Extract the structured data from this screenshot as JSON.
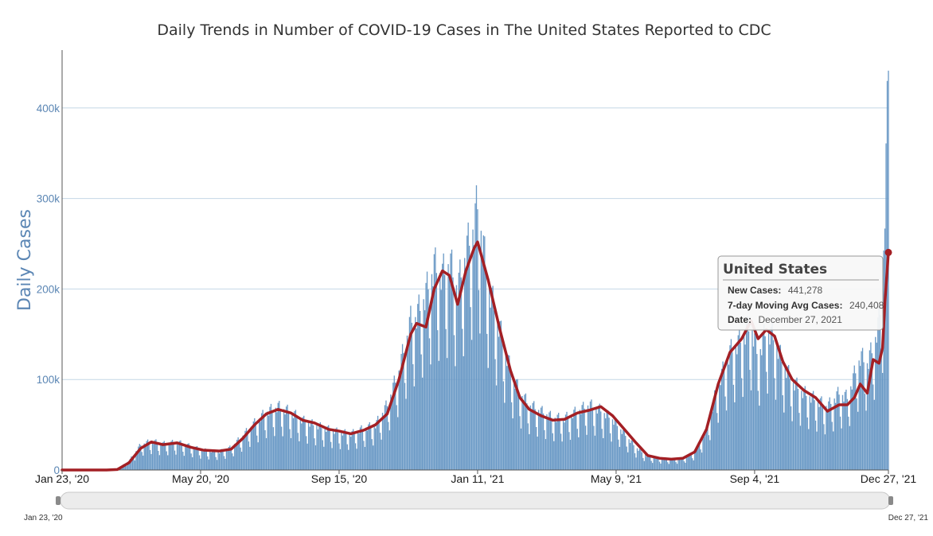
{
  "chart_data": {
    "type": "bar",
    "title": "Daily Trends in Number of COVID-19 Cases in The United States Reported to CDC",
    "ylabel": "Daily Cases",
    "xlabel": "",
    "ylim": [
      0,
      460000
    ],
    "x_range": [
      "2020-01-23",
      "2021-12-27"
    ],
    "y_ticks": [
      {
        "value": 0,
        "label": "0"
      },
      {
        "value": 100000,
        "label": "100k"
      },
      {
        "value": 200000,
        "label": "200k"
      },
      {
        "value": 300000,
        "label": "300k"
      },
      {
        "value": 400000,
        "label": "400k"
      }
    ],
    "x_ticks": [
      {
        "date": "2020-01-23",
        "label": "Jan 23, '20"
      },
      {
        "date": "2020-05-20",
        "label": "May 20, '20"
      },
      {
        "date": "2020-09-15",
        "label": "Sep 15, '20"
      },
      {
        "date": "2021-01-11",
        "label": "Jan 11, '21"
      },
      {
        "date": "2021-05-09",
        "label": "May 9, '21"
      },
      {
        "date": "2021-09-04",
        "label": "Sep 4, '21"
      },
      {
        "date": "2021-12-27",
        "label": "Dec 27, '21"
      }
    ],
    "navigator_labels": [
      "Jan 23, '20",
      "Dec 27, '21"
    ],
    "grid": true,
    "legend": "none",
    "colors": {
      "bars": "#6b9ac6",
      "moving_avg": "#a31f24",
      "grid": "#c4d7e6",
      "axis_text": "#5b86b4"
    },
    "series": [
      {
        "type": "bar",
        "dates": [
          "2020-01-23",
          "2020-03-01",
          "2020-03-10",
          "2020-03-20",
          "2020-03-30",
          "2020-04-08",
          "2020-04-18",
          "2020-04-30",
          "2020-05-12",
          "2020-05-22",
          "2020-06-05",
          "2020-06-15",
          "2020-06-25",
          "2020-07-05",
          "2020-07-15",
          "2020-07-25",
          "2020-08-05",
          "2020-08-15",
          "2020-08-25",
          "2020-09-06",
          "2020-09-15",
          "2020-09-25",
          "2020-10-06",
          "2020-10-16",
          "2020-10-26",
          "2020-11-05",
          "2020-11-15",
          "2020-11-20",
          "2020-11-28",
          "2020-12-05",
          "2020-12-12",
          "2020-12-18",
          "2020-12-25",
          "2021-01-01",
          "2021-01-08",
          "2021-01-11",
          "2021-01-20",
          "2021-01-30",
          "2021-02-08",
          "2021-02-16",
          "2021-02-24",
          "2021-03-06",
          "2021-03-16",
          "2021-03-26",
          "2021-04-06",
          "2021-04-16",
          "2021-04-26",
          "2021-05-06",
          "2021-05-16",
          "2021-05-26",
          "2021-06-05",
          "2021-06-15",
          "2021-06-25",
          "2021-07-05",
          "2021-07-15",
          "2021-07-25",
          "2021-08-04",
          "2021-08-14",
          "2021-08-24",
          "2021-09-01",
          "2021-09-07",
          "2021-09-14",
          "2021-09-21",
          "2021-09-28",
          "2021-10-06",
          "2021-10-16",
          "2021-10-26",
          "2021-11-05",
          "2021-11-15",
          "2021-11-22",
          "2021-11-28",
          "2021-12-03",
          "2021-12-09",
          "2021-12-14",
          "2021-12-19",
          "2021-12-22",
          "2021-12-24",
          "2021-12-27"
        ],
        "values": [
          0,
          0,
          1000,
          10000,
          28000,
          32000,
          29000,
          31000,
          26000,
          22000,
          20000,
          25000,
          38000,
          52000,
          64000,
          70000,
          64000,
          55000,
          50000,
          45000,
          42000,
          40000,
          46000,
          50000,
          72000,
          110000,
          165000,
          170000,
          195000,
          225000,
          215000,
          230000,
          200000,
          240000,
          270000,
          294000,
          205000,
          155000,
          110000,
          85000,
          72000,
          65000,
          58000,
          57000,
          65000,
          72000,
          66000,
          56000,
          40000,
          25000,
          15000,
          13000,
          12000,
          13000,
          20000,
          45000,
          95000,
          130000,
          145000,
          160000,
          125000,
          155000,
          145000,
          118000,
          98000,
          85000,
          78000,
          70000,
          85000,
          80000,
          105000,
          125000,
          118000,
          135000,
          165000,
          195000,
          290000,
          441278
        ]
      },
      {
        "type": "line",
        "name": "7-day Moving Avg Cases",
        "dates": [
          "2020-01-23",
          "2020-03-01",
          "2020-03-10",
          "2020-03-20",
          "2020-03-30",
          "2020-04-08",
          "2020-04-18",
          "2020-04-30",
          "2020-05-12",
          "2020-05-22",
          "2020-06-05",
          "2020-06-15",
          "2020-06-25",
          "2020-07-05",
          "2020-07-15",
          "2020-07-25",
          "2020-08-05",
          "2020-08-15",
          "2020-08-25",
          "2020-09-06",
          "2020-09-15",
          "2020-09-25",
          "2020-10-06",
          "2020-10-16",
          "2020-10-26",
          "2020-11-05",
          "2020-11-15",
          "2020-11-20",
          "2020-11-28",
          "2020-12-05",
          "2020-12-12",
          "2020-12-18",
          "2020-12-25",
          "2021-01-01",
          "2021-01-08",
          "2021-01-11",
          "2021-01-20",
          "2021-01-30",
          "2021-02-08",
          "2021-02-16",
          "2021-02-24",
          "2021-03-06",
          "2021-03-16",
          "2021-03-26",
          "2021-04-06",
          "2021-04-16",
          "2021-04-26",
          "2021-05-06",
          "2021-05-16",
          "2021-05-26",
          "2021-06-05",
          "2021-06-15",
          "2021-06-25",
          "2021-07-05",
          "2021-07-15",
          "2021-07-25",
          "2021-08-04",
          "2021-08-14",
          "2021-08-24",
          "2021-09-01",
          "2021-09-07",
          "2021-09-14",
          "2021-09-21",
          "2021-09-28",
          "2021-10-06",
          "2021-10-16",
          "2021-10-26",
          "2021-11-05",
          "2021-11-15",
          "2021-11-22",
          "2021-11-28",
          "2021-12-03",
          "2021-12-09",
          "2021-12-14",
          "2021-12-19",
          "2021-12-22",
          "2021-12-24",
          "2021-12-27"
        ],
        "values": [
          0,
          0,
          500,
          8000,
          24000,
          31000,
          28000,
          30000,
          25000,
          22000,
          21000,
          23000,
          35000,
          50000,
          62000,
          67000,
          63000,
          55000,
          52000,
          45000,
          43000,
          40000,
          44000,
          50000,
          62000,
          100000,
          150000,
          162000,
          158000,
          200000,
          220000,
          215000,
          183000,
          220000,
          245000,
          252000,
          210000,
          155000,
          110000,
          80000,
          67000,
          60000,
          55000,
          56000,
          63000,
          66000,
          70000,
          60000,
          45000,
          30000,
          16000,
          13000,
          12000,
          13000,
          20000,
          45000,
          95000,
          130000,
          145000,
          165000,
          145000,
          155000,
          148000,
          120000,
          100000,
          88000,
          80000,
          65000,
          72000,
          72000,
          80000,
          95000,
          85000,
          122000,
          118000,
          135000,
          185000,
          240408
        ]
      }
    ],
    "tooltip": {
      "title": "United States",
      "rows": [
        {
          "label": "New Cases:",
          "value": "441,278"
        },
        {
          "label": "7-day Moving Avg Cases:",
          "value": "240,408"
        },
        {
          "label": "Date:",
          "value": "December 27, 2021"
        }
      ]
    }
  }
}
